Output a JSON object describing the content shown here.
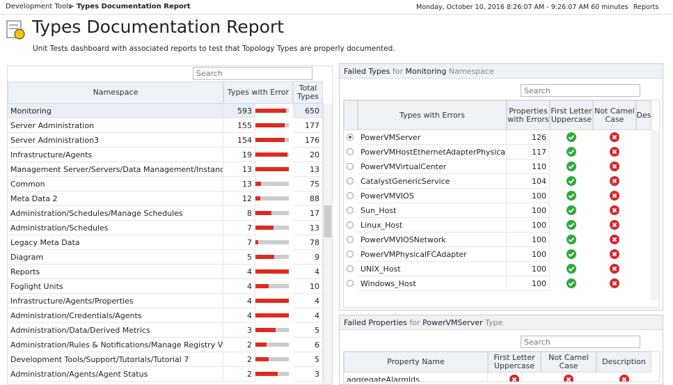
{
  "header": {
    "breadcrumb_root": "Development Tools",
    "breadcrumb_current": "Types Documentation Report",
    "time_range": "Monday, October 10, 2016 8:26:07 AM - 9:26:07 AM 60 minutes",
    "reports": "Reports",
    "title": "Types Documentation Report",
    "description": "Unit Tests dashboard with associated reports to test that Topology Types are properly documented."
  },
  "left_table": {
    "search": "Search",
    "columns": [
      "Namespace",
      "Types with Error",
      "Total Types"
    ],
    "rows": [
      [
        "Monitoring",
        593,
        650
      ],
      [
        "Server Administration",
        155,
        177
      ],
      [
        "Server Administration3",
        154,
        176
      ],
      [
        "Infrastructure/Agents",
        19,
        20
      ],
      [
        "Management Server/Servers/Data Management/Instances",
        13,
        13
      ],
      [
        "Common",
        13,
        75
      ],
      [
        "Meta Data 2",
        12,
        88
      ],
      [
        "Administration/Schedules/Manage Schedules",
        8,
        17
      ],
      [
        "Administration/Schedules",
        7,
        13
      ],
      [
        "Legacy Meta Data",
        7,
        78
      ],
      [
        "Diagram",
        5,
        9
      ],
      [
        "Reports",
        4,
        4
      ],
      [
        "Foglight Units",
        4,
        10
      ],
      [
        "Infrastructure/Agents/Properties",
        4,
        4
      ],
      [
        "Administration/Credentials/Agents",
        4,
        4
      ],
      [
        "Administration/Data/Derived Metrics",
        3,
        5
      ],
      [
        "Administration/Rules & Notifications/Manage Registry Variables",
        2,
        6
      ],
      [
        "Development Tools/Support/Tutorials/Tutorial 7",
        2,
        5
      ],
      [
        "Administration/Agents/Agent Status",
        2,
        3
      ]
    ]
  },
  "types_panel": {
    "title": "Failed Types",
    "prefix": "for",
    "context": "Monitoring",
    "suffix": "Namespace",
    "search": "Search",
    "columns": [
      "Types with Errors",
      "Properties with Errors",
      "First Letter Uppercase",
      "Not Camel Case",
      "Des"
    ],
    "rows": [
      [
        "PowerVMServer",
        126
      ],
      [
        "PowerVMHostEthernetAdapterPhysicalPort",
        117
      ],
      [
        "PowerVMVirtualCenter",
        110
      ],
      [
        "CatalystGenericService",
        104
      ],
      [
        "PowerVMVIOS",
        100
      ],
      [
        "Sun_Host",
        100
      ],
      [
        "Linux_Host",
        100
      ],
      [
        "PowerVMVIOSNetwork",
        100
      ],
      [
        "PowerVMPhysicalFCAdapter",
        100
      ],
      [
        "UNIX_Host",
        100
      ],
      [
        "Windows_Host",
        100
      ]
    ]
  },
  "properties_panel": {
    "title": "Failed Properties",
    "prefix": "for",
    "context": "PowerVMServer",
    "suffix": "Type",
    "search": "Search",
    "columns": [
      "Property Name",
      "First Letter Uppercase",
      "Not Camel Case",
      "Description"
    ],
    "rows": [
      [
        "aggregateAlarmIds"
      ]
    ]
  }
}
